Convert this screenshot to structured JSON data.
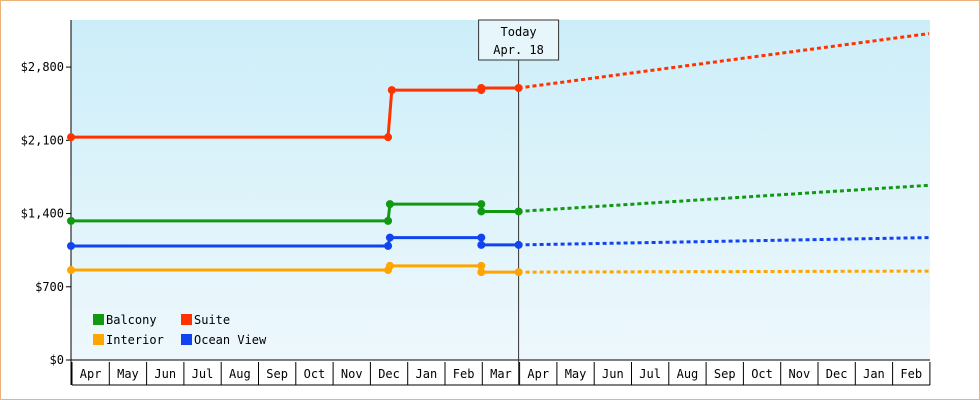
{
  "chart_data": {
    "type": "line",
    "y_tick_labels": [
      "$0",
      "$700",
      "$1,400",
      "$2,100",
      "$2,800"
    ],
    "y_ticks": [
      0,
      700,
      1400,
      2100,
      2800
    ],
    "ylim": [
      0,
      3250
    ],
    "x_tick_labels": [
      "Apr",
      "May",
      "Jun",
      "Jul",
      "Aug",
      "Sep",
      "Oct",
      "Nov",
      "Dec",
      "Jan",
      "Feb",
      "Mar",
      "Apr",
      "May",
      "Jun",
      "Jul",
      "Aug",
      "Sep",
      "Oct",
      "Nov",
      "Dec",
      "Jan",
      "Feb"
    ],
    "today": {
      "line1": "Today",
      "line2": "Apr. 18",
      "month_index": 12
    },
    "colors": {
      "Balcony": "#119911",
      "Suite": "#ff3300",
      "Interior": "#ffa500",
      "Ocean View": "#1144ee",
      "plot_top": "#cceef9",
      "plot_bottom": "#eef8fc",
      "frame": "#e8b27a"
    },
    "legend": [
      {
        "name": "Balcony",
        "row": 0,
        "col": 0
      },
      {
        "name": "Suite",
        "row": 0,
        "col": 1
      },
      {
        "name": "Interior",
        "row": 1,
        "col": 0
      },
      {
        "name": "Ocean View",
        "row": 1,
        "col": 1
      }
    ],
    "series": [
      {
        "name": "Suite",
        "history": [
          [
            0,
            2130
          ],
          [
            8.5,
            2130
          ],
          [
            8.6,
            2580
          ],
          [
            11,
            2580
          ],
          [
            11,
            2600
          ],
          [
            12,
            2600
          ]
        ],
        "markers": [
          [
            0,
            2130
          ],
          [
            8.5,
            2130
          ],
          [
            8.6,
            2580
          ],
          [
            11,
            2580
          ],
          [
            11,
            2600
          ],
          [
            12,
            2600
          ]
        ],
        "forecast": [
          [
            12,
            2600
          ],
          [
            23,
            3120
          ]
        ]
      },
      {
        "name": "Balcony",
        "history": [
          [
            0,
            1330
          ],
          [
            8.5,
            1330
          ],
          [
            8.55,
            1490
          ],
          [
            11,
            1490
          ],
          [
            11,
            1420
          ],
          [
            12,
            1420
          ]
        ],
        "markers": [
          [
            0,
            1330
          ],
          [
            8.5,
            1330
          ],
          [
            8.55,
            1490
          ],
          [
            11,
            1490
          ],
          [
            11,
            1420
          ],
          [
            12,
            1420
          ]
        ],
        "forecast": [
          [
            12,
            1420
          ],
          [
            23,
            1670
          ]
        ]
      },
      {
        "name": "Ocean View",
        "history": [
          [
            0,
            1090
          ],
          [
            8.5,
            1090
          ],
          [
            8.55,
            1170
          ],
          [
            11,
            1170
          ],
          [
            11,
            1100
          ],
          [
            12,
            1100
          ]
        ],
        "markers": [
          [
            0,
            1090
          ],
          [
            8.5,
            1090
          ],
          [
            8.55,
            1170
          ],
          [
            11,
            1170
          ],
          [
            11,
            1100
          ],
          [
            12,
            1100
          ]
        ],
        "forecast": [
          [
            12,
            1100
          ],
          [
            23,
            1170
          ]
        ]
      },
      {
        "name": "Interior",
        "history": [
          [
            0,
            860
          ],
          [
            8.5,
            860
          ],
          [
            8.55,
            900
          ],
          [
            11,
            900
          ],
          [
            11,
            840
          ],
          [
            12,
            840
          ]
        ],
        "markers": [
          [
            0,
            860
          ],
          [
            8.5,
            860
          ],
          [
            8.55,
            900
          ],
          [
            11,
            900
          ],
          [
            11,
            840
          ],
          [
            12,
            840
          ]
        ],
        "forecast": [
          [
            12,
            840
          ],
          [
            23,
            850
          ]
        ]
      }
    ]
  }
}
